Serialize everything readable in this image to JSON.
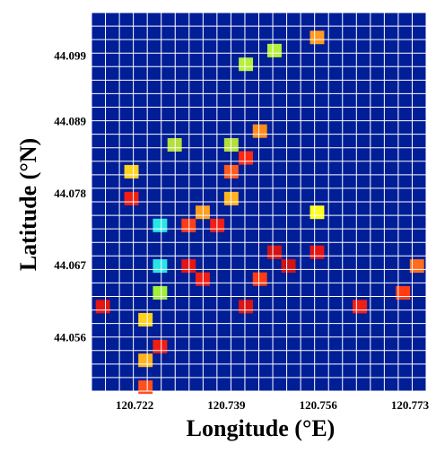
{
  "chart_data": {
    "type": "heatmap",
    "title": "",
    "xlabel": "Longitude (°E)",
    "ylabel": "Latitude (°N)",
    "xlim": [
      120.714,
      120.776
    ],
    "ylim": [
      44.0477,
      44.1055
    ],
    "x_ticks": [
      {
        "value": 120.722,
        "label": "120.722"
      },
      {
        "value": 120.739,
        "label": "120.739"
      },
      {
        "value": 120.756,
        "label": "120.756"
      },
      {
        "value": 120.773,
        "label": "120.773"
      }
    ],
    "y_ticks": [
      {
        "value": 44.099,
        "label": "44.099"
      },
      {
        "value": 44.089,
        "label": "44.089"
      },
      {
        "value": 44.078,
        "label": "44.078"
      },
      {
        "value": 44.067,
        "label": "44.067"
      },
      {
        "value": 44.056,
        "label": "44.056"
      }
    ],
    "grid": true,
    "background_color": "#001e96",
    "grid_color": "#ffffff",
    "grid_columns": 24,
    "grid_rows": 28,
    "cell_size_deg": [
      0.00265,
      0.00206
    ],
    "cells": [
      {
        "lon": 120.7558,
        "lat": 44.1017,
        "color": "#ff9a1e"
      },
      {
        "lon": 120.7479,
        "lat": 44.0997,
        "color": "#b4f03c"
      },
      {
        "lon": 120.7426,
        "lat": 44.0976,
        "color": "#b4f03c"
      },
      {
        "lon": 120.7452,
        "lat": 44.0874,
        "color": "#ff8c1a"
      },
      {
        "lon": 120.7294,
        "lat": 44.0853,
        "color": "#b4e03c"
      },
      {
        "lon": 120.7399,
        "lat": 44.0853,
        "color": "#b4e03c"
      },
      {
        "lon": 120.7426,
        "lat": 44.0833,
        "color": "#ff2814"
      },
      {
        "lon": 120.7399,
        "lat": 44.0812,
        "color": "#ff5a1e"
      },
      {
        "lon": 120.7214,
        "lat": 44.0812,
        "color": "#ffd21e"
      },
      {
        "lon": 120.7214,
        "lat": 44.0771,
        "color": "#f01e14"
      },
      {
        "lon": 120.7399,
        "lat": 44.0771,
        "color": "#ffb41e"
      },
      {
        "lon": 120.7346,
        "lat": 44.075,
        "color": "#ffa01e"
      },
      {
        "lon": 120.7558,
        "lat": 44.075,
        "color": "#ffff1e"
      },
      {
        "lon": 120.7267,
        "lat": 44.073,
        "color": "#28e6e6"
      },
      {
        "lon": 120.732,
        "lat": 44.073,
        "color": "#ff3c14"
      },
      {
        "lon": 120.7373,
        "lat": 44.073,
        "color": "#f01e14"
      },
      {
        "lon": 120.7479,
        "lat": 44.0689,
        "color": "#d21414"
      },
      {
        "lon": 120.7558,
        "lat": 44.0689,
        "color": "#e61414"
      },
      {
        "lon": 120.7267,
        "lat": 44.0668,
        "color": "#28e6e6"
      },
      {
        "lon": 120.732,
        "lat": 44.0668,
        "color": "#e61414"
      },
      {
        "lon": 120.7505,
        "lat": 44.0668,
        "color": "#d21414"
      },
      {
        "lon": 120.7743,
        "lat": 44.0668,
        "color": "#ff6e1e"
      },
      {
        "lon": 120.7346,
        "lat": 44.0648,
        "color": "#f01e14"
      },
      {
        "lon": 120.7452,
        "lat": 44.0648,
        "color": "#ff3c14"
      },
      {
        "lon": 120.7267,
        "lat": 44.0627,
        "color": "#a0f03c"
      },
      {
        "lon": 120.7717,
        "lat": 44.0627,
        "color": "#ff3c14"
      },
      {
        "lon": 120.7161,
        "lat": 44.0606,
        "color": "#e61414"
      },
      {
        "lon": 120.7426,
        "lat": 44.0606,
        "color": "#dc1414"
      },
      {
        "lon": 120.7637,
        "lat": 44.0606,
        "color": "#f01e14"
      },
      {
        "lon": 120.724,
        "lat": 44.0586,
        "color": "#ffd21e"
      },
      {
        "lon": 120.7267,
        "lat": 44.0545,
        "color": "#f01e14"
      },
      {
        "lon": 120.724,
        "lat": 44.0524,
        "color": "#ffb41e"
      },
      {
        "lon": 120.724,
        "lat": 44.0483,
        "color": "#ff501e"
      }
    ]
  }
}
